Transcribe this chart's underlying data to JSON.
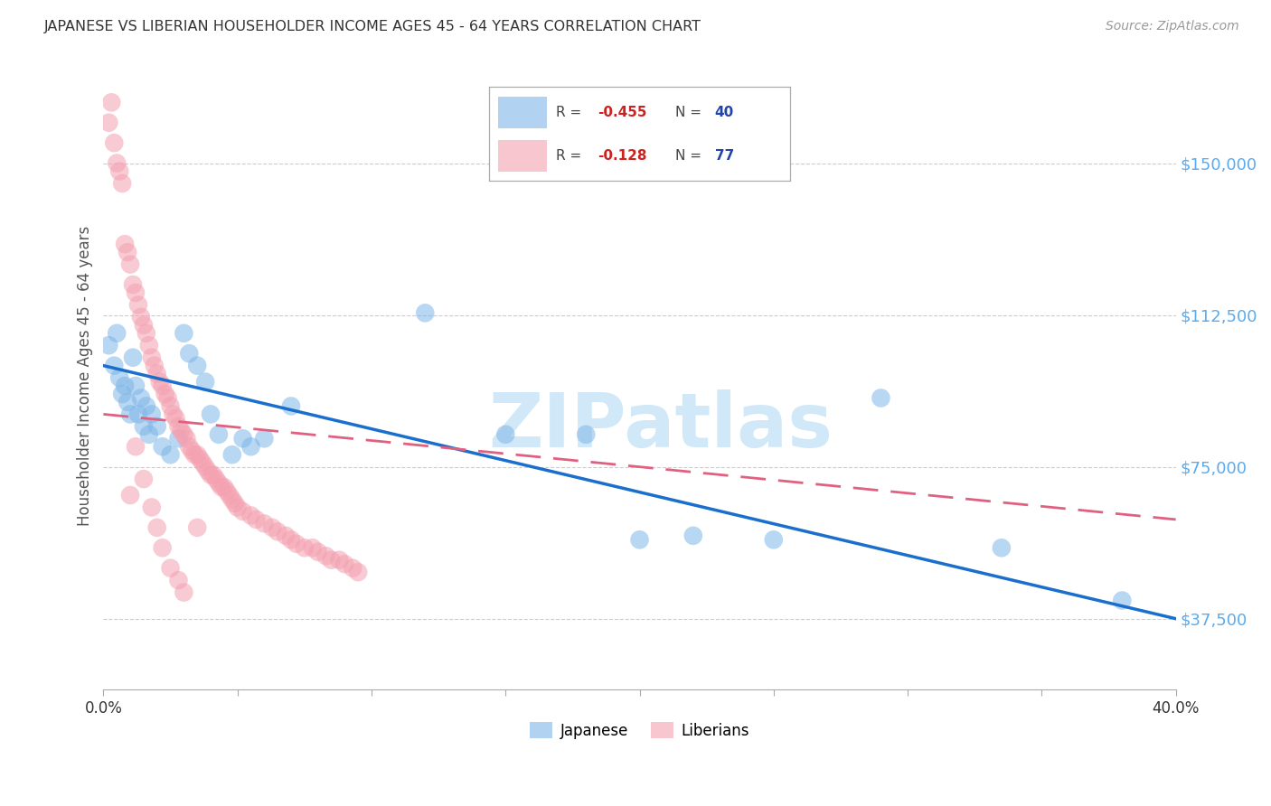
{
  "title": "JAPANESE VS LIBERIAN HOUSEHOLDER INCOME AGES 45 - 64 YEARS CORRELATION CHART",
  "source": "Source: ZipAtlas.com",
  "ylabel": "Householder Income Ages 45 - 64 years",
  "xlim": [
    0.0,
    0.4
  ],
  "ylim": [
    20000,
    175000
  ],
  "yticks": [
    37500,
    75000,
    112500,
    150000
  ],
  "ytick_labels": [
    "$37,500",
    "$75,000",
    "$112,500",
    "$150,000"
  ],
  "xticks": [
    0.0,
    0.05,
    0.1,
    0.15,
    0.2,
    0.25,
    0.3,
    0.35,
    0.4
  ],
  "xtick_labels": [
    "0.0%",
    "",
    "",
    "",
    "",
    "",
    "",
    "",
    "40.0%"
  ],
  "japanese_color": "#7EB6E8",
  "liberian_color": "#F4A0B0",
  "trend_japanese_color": "#1A6FCC",
  "trend_liberian_color": "#E06080",
  "background_color": "#FFFFFF",
  "grid_color": "#CCCCCC",
  "title_color": "#333333",
  "ytick_color": "#5AABEE",
  "watermark_color": "#D0E8F8",
  "legend_R_color": "#CC2222",
  "legend_N_color": "#2244AA",
  "legend_R_japanese": "-0.455",
  "legend_N_japanese": "40",
  "legend_R_liberian": "-0.128",
  "legend_N_liberian": "77",
  "japanese_points": [
    [
      0.002,
      105000
    ],
    [
      0.004,
      100000
    ],
    [
      0.005,
      108000
    ],
    [
      0.006,
      97000
    ],
    [
      0.007,
      93000
    ],
    [
      0.008,
      95000
    ],
    [
      0.009,
      91000
    ],
    [
      0.01,
      88000
    ],
    [
      0.011,
      102000
    ],
    [
      0.012,
      95000
    ],
    [
      0.013,
      88000
    ],
    [
      0.014,
      92000
    ],
    [
      0.015,
      85000
    ],
    [
      0.016,
      90000
    ],
    [
      0.017,
      83000
    ],
    [
      0.018,
      88000
    ],
    [
      0.02,
      85000
    ],
    [
      0.022,
      80000
    ],
    [
      0.025,
      78000
    ],
    [
      0.028,
      82000
    ],
    [
      0.03,
      108000
    ],
    [
      0.032,
      103000
    ],
    [
      0.035,
      100000
    ],
    [
      0.038,
      96000
    ],
    [
      0.04,
      88000
    ],
    [
      0.043,
      83000
    ],
    [
      0.048,
      78000
    ],
    [
      0.052,
      82000
    ],
    [
      0.055,
      80000
    ],
    [
      0.06,
      82000
    ],
    [
      0.07,
      90000
    ],
    [
      0.12,
      113000
    ],
    [
      0.15,
      83000
    ],
    [
      0.18,
      83000
    ],
    [
      0.2,
      57000
    ],
    [
      0.22,
      58000
    ],
    [
      0.25,
      57000
    ],
    [
      0.29,
      92000
    ],
    [
      0.335,
      55000
    ],
    [
      0.38,
      42000
    ]
  ],
  "liberian_points": [
    [
      0.002,
      160000
    ],
    [
      0.003,
      165000
    ],
    [
      0.004,
      155000
    ],
    [
      0.005,
      150000
    ],
    [
      0.006,
      148000
    ],
    [
      0.007,
      145000
    ],
    [
      0.008,
      130000
    ],
    [
      0.009,
      128000
    ],
    [
      0.01,
      125000
    ],
    [
      0.011,
      120000
    ],
    [
      0.012,
      118000
    ],
    [
      0.013,
      115000
    ],
    [
      0.014,
      112000
    ],
    [
      0.015,
      110000
    ],
    [
      0.016,
      108000
    ],
    [
      0.017,
      105000
    ],
    [
      0.018,
      102000
    ],
    [
      0.019,
      100000
    ],
    [
      0.02,
      98000
    ],
    [
      0.021,
      96000
    ],
    [
      0.022,
      95000
    ],
    [
      0.023,
      93000
    ],
    [
      0.024,
      92000
    ],
    [
      0.025,
      90000
    ],
    [
      0.026,
      88000
    ],
    [
      0.027,
      87000
    ],
    [
      0.028,
      85000
    ],
    [
      0.029,
      84000
    ],
    [
      0.03,
      83000
    ],
    [
      0.031,
      82000
    ],
    [
      0.032,
      80000
    ],
    [
      0.033,
      79000
    ],
    [
      0.034,
      78000
    ],
    [
      0.035,
      78000
    ],
    [
      0.036,
      77000
    ],
    [
      0.037,
      76000
    ],
    [
      0.038,
      75000
    ],
    [
      0.039,
      74000
    ],
    [
      0.04,
      73000
    ],
    [
      0.041,
      73000
    ],
    [
      0.042,
      72000
    ],
    [
      0.043,
      71000
    ],
    [
      0.044,
      70000
    ],
    [
      0.045,
      70000
    ],
    [
      0.046,
      69000
    ],
    [
      0.047,
      68000
    ],
    [
      0.048,
      67000
    ],
    [
      0.049,
      66000
    ],
    [
      0.05,
      65000
    ],
    [
      0.052,
      64000
    ],
    [
      0.055,
      63000
    ],
    [
      0.057,
      62000
    ],
    [
      0.06,
      61000
    ],
    [
      0.063,
      60000
    ],
    [
      0.065,
      59000
    ],
    [
      0.068,
      58000
    ],
    [
      0.07,
      57000
    ],
    [
      0.072,
      56000
    ],
    [
      0.075,
      55000
    ],
    [
      0.078,
      55000
    ],
    [
      0.08,
      54000
    ],
    [
      0.083,
      53000
    ],
    [
      0.085,
      52000
    ],
    [
      0.088,
      52000
    ],
    [
      0.09,
      51000
    ],
    [
      0.093,
      50000
    ],
    [
      0.095,
      49000
    ],
    [
      0.01,
      68000
    ],
    [
      0.012,
      80000
    ],
    [
      0.015,
      72000
    ],
    [
      0.018,
      65000
    ],
    [
      0.02,
      60000
    ],
    [
      0.022,
      55000
    ],
    [
      0.025,
      50000
    ],
    [
      0.028,
      47000
    ],
    [
      0.03,
      44000
    ],
    [
      0.035,
      60000
    ]
  ]
}
